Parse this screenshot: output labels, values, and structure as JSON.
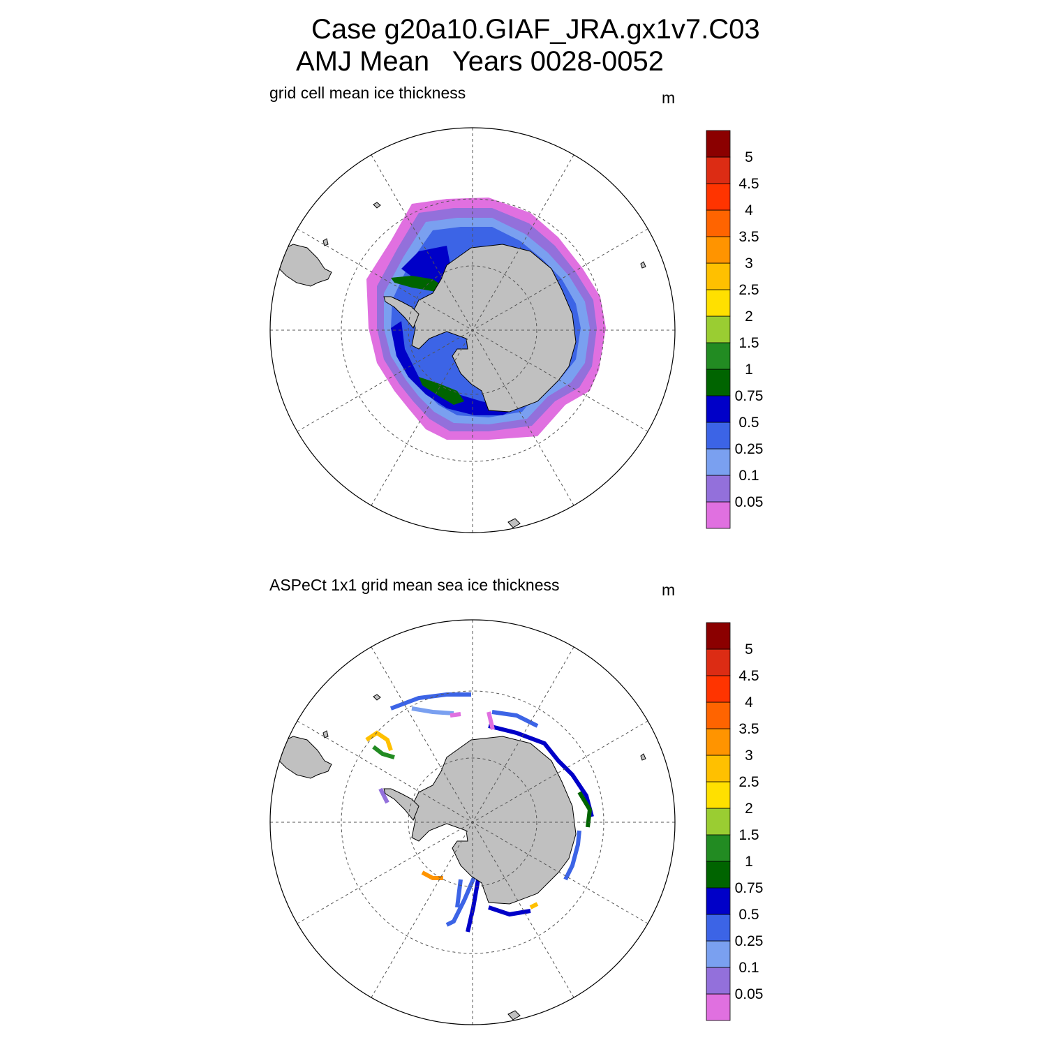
{
  "header": {
    "title_line1": "Case g20a10.GIAF_JRA.gx1v7.C03",
    "title_line2": "AMJ Mean   Years 0028-0052"
  },
  "chart_data": [
    {
      "type": "heatmap",
      "projection": "south polar stereographic",
      "title": "grid cell mean ice thickness",
      "units": "m",
      "field": "sea ice thickness (model, grid cell mean)",
      "colorbar": {
        "levels": [
          "0.05",
          "0.1",
          "0.25",
          "0.5",
          "0.75",
          "1",
          "1.5",
          "2",
          "2.5",
          "3",
          "3.5",
          "4",
          "4.5",
          "5"
        ],
        "colors": [
          "#e070e0",
          "#9370db",
          "#7aa0f0",
          "#3c64e6",
          "#0000c8",
          "#006400",
          "#228b22",
          "#9acd32",
          "#ffe000",
          "#ffc000",
          "#ff9400",
          "#ff6400",
          "#ff3400",
          "#dc2c14",
          "#8b0000"
        ]
      }
    },
    {
      "type": "heatmap",
      "projection": "south polar stereographic",
      "title": "ASPeCt 1x1 grid mean sea ice thickness",
      "units": "m",
      "field": "sea ice thickness (ASPeCt ship observations)",
      "colorbar": {
        "levels": [
          "0.05",
          "0.1",
          "0.25",
          "0.5",
          "0.75",
          "1",
          "1.5",
          "2",
          "2.5",
          "3",
          "3.5",
          "4",
          "4.5",
          "5"
        ],
        "colors": [
          "#e070e0",
          "#9370db",
          "#7aa0f0",
          "#3c64e6",
          "#0000c8",
          "#006400",
          "#228b22",
          "#9acd32",
          "#ffe000",
          "#ffc000",
          "#ff9400",
          "#ff6400",
          "#ff3400",
          "#dc2c14",
          "#8b0000"
        ]
      }
    }
  ]
}
